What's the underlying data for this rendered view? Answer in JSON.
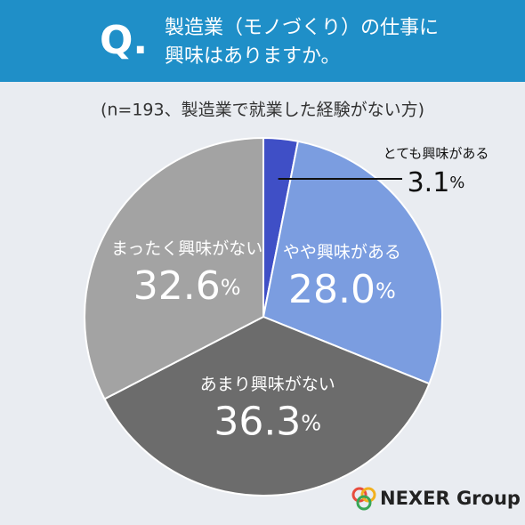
{
  "header": {
    "marker": "Q.",
    "title_lines": [
      "製造業（モノづくり）の仕事に",
      "興味はありますか。"
    ]
  },
  "chart_data": {
    "type": "pie",
    "subtitle": "(n=193、製造業で就業した経験がない方)",
    "categories": [
      "とても興味がある",
      "やや興味がある",
      "あまり興味がない",
      "まったく興味がない"
    ],
    "values": [
      3.1,
      28.0,
      36.3,
      32.6
    ],
    "value_labels": [
      "3.1%",
      "28.0%",
      "36.3%",
      "32.6%"
    ],
    "colors": [
      "#3f4fc6",
      "#7b9de0",
      "#6c6c6c",
      "#a3a3a3"
    ]
  },
  "logo": "NEXER Group"
}
